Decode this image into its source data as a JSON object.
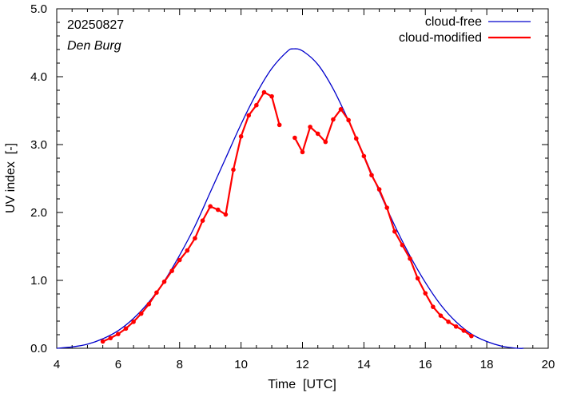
{
  "chart_data": {
    "type": "line",
    "date": "20250827",
    "location": "Den Burg",
    "xlabel": "Time  [UTC]",
    "ylabel": "UV index  [-]",
    "xlim": [
      4,
      20
    ],
    "ylim": [
      0,
      5
    ],
    "xticks": [
      "4",
      "6",
      "8",
      "10",
      "12",
      "14",
      "16",
      "18",
      "20"
    ],
    "yticks": [
      "0.0",
      "1.0",
      "2.0",
      "3.0",
      "4.0",
      "5.0"
    ],
    "legend_position": "top-right",
    "series": [
      {
        "name": "cloud-free",
        "color": "#0000cc",
        "style": "line",
        "x": [
          4.0,
          4.5,
          5.0,
          5.5,
          6.0,
          6.5,
          7.0,
          7.5,
          8.0,
          8.5,
          9.0,
          9.5,
          10.0,
          10.5,
          11.0,
          11.5,
          11.7,
          12.0,
          12.5,
          13.0,
          13.5,
          14.0,
          14.5,
          15.0,
          15.5,
          16.0,
          16.5,
          17.0,
          17.5,
          18.0,
          18.5,
          19.0,
          19.2
        ],
        "y": [
          0.0,
          0.02,
          0.06,
          0.14,
          0.26,
          0.44,
          0.68,
          0.99,
          1.37,
          1.8,
          2.3,
          2.8,
          3.3,
          3.75,
          4.12,
          4.37,
          4.41,
          4.38,
          4.18,
          3.82,
          3.35,
          2.84,
          2.31,
          1.81,
          1.36,
          0.97,
          0.64,
          0.39,
          0.21,
          0.1,
          0.03,
          0.0,
          0.0
        ]
      },
      {
        "name": "cloud-modified",
        "color": "#ff0000",
        "style": "linespoints",
        "segments": [
          {
            "x": [
              5.5,
              5.75,
              6.0,
              6.25,
              6.5,
              6.75,
              7.0,
              7.25,
              7.5,
              7.75,
              8.0,
              8.25,
              8.5,
              8.75,
              9.0,
              9.25,
              9.5,
              9.75,
              10.0,
              10.25,
              10.5,
              10.75,
              11.0,
              11.25
            ],
            "y": [
              0.1,
              0.15,
              0.21,
              0.29,
              0.39,
              0.51,
              0.65,
              0.82,
              0.98,
              1.14,
              1.3,
              1.44,
              1.62,
              1.88,
              2.09,
              2.04,
              1.97,
              2.63,
              3.12,
              3.43,
              3.58,
              3.77,
              3.71,
              3.29
            ]
          },
          {
            "x": [
              11.75,
              12.0,
              12.25,
              12.5,
              12.75,
              13.0,
              13.25,
              13.5,
              13.75,
              14.0,
              14.25,
              14.5,
              14.75,
              15.0,
              15.25,
              15.5,
              15.75,
              16.0,
              16.25,
              16.5,
              16.75,
              17.0,
              17.25,
              17.5
            ],
            "y": [
              3.1,
              2.89,
              3.26,
              3.16,
              3.04,
              3.37,
              3.52,
              3.36,
              3.09,
              2.83,
              2.55,
              2.34,
              2.07,
              1.72,
              1.52,
              1.32,
              1.03,
              0.81,
              0.61,
              0.48,
              0.39,
              0.32,
              0.26,
              0.18
            ]
          }
        ]
      }
    ]
  }
}
